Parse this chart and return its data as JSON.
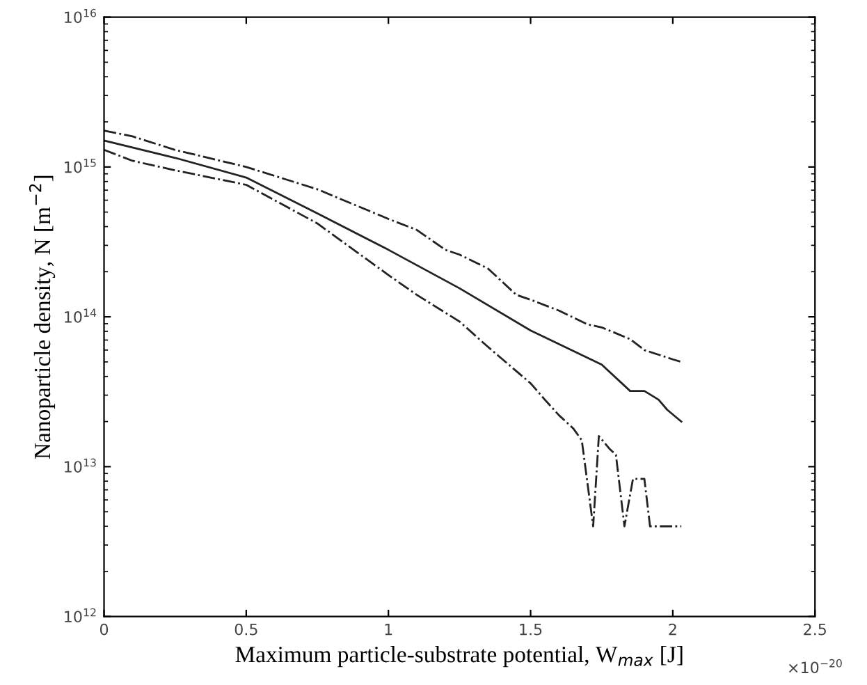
{
  "chart_data": {
    "type": "line",
    "xlabel": "Maximum particle-substrate potential, W$_{max}$ [J]",
    "ylabel": "Nanoparticle density, N [m$^{−2}$]",
    "annotations": [
      "×10$^{−20}$"
    ],
    "log": "y",
    "grid": false,
    "legend": false,
    "marker": "none",
    "xlim": [
      0,
      2.5
    ],
    "xticks": [
      0,
      0.5,
      1,
      1.5,
      2,
      2.5
    ],
    "ylim": [
      1000000000000.0,
      1e+16
    ],
    "yticks": [
      {
        "value": 1000000000000.0,
        "label": "10$^{12}$"
      },
      {
        "value": 10000000000000.0,
        "label": "10$^{13}$"
      },
      {
        "value": 100000000000000.0,
        "label": "10$^{14}$"
      },
      {
        "value": 1000000000000000.0,
        "label": "10$^{15}$"
      },
      {
        "value": 1e+16,
        "label": "10$^{16}$"
      }
    ],
    "series": [
      {
        "color": "#222222",
        "line_style": "solid",
        "x": [
          0,
          0.1,
          0.25,
          0.5,
          0.75,
          1,
          1.25,
          1.5,
          1.75,
          1.85,
          1.9,
          1.95,
          1.98,
          2.03
        ],
        "values": [
          1500000000000000.0,
          1350000000000000.0,
          1150000000000000.0,
          850000000000000.0,
          490000000000000.0,
          280000000000000.0,
          155000000000000.0,
          81000000000000.0,
          48000000000000.0,
          32000000000000.0,
          32000000000000.0,
          28000000000000.0,
          24000000000000.0,
          20000000000000.0
        ]
      },
      {
        "color": "#222222",
        "line_style": "dashdot",
        "x": [
          0,
          0.1,
          0.25,
          0.5,
          0.75,
          1,
          1.1,
          1.2,
          1.25,
          1.35,
          1.45,
          1.5,
          1.6,
          1.7,
          1.75,
          1.85,
          1.9,
          2,
          2.03
        ],
        "values": [
          1750000000000000.0,
          1600000000000000.0,
          1300000000000000.0,
          1000000000000000.0,
          710000000000000.0,
          450000000000000.0,
          380000000000000.0,
          280000000000000.0,
          260000000000000.0,
          210000000000000.0,
          140000000000000.0,
          130000000000000.0,
          110000000000000.0,
          89000000000000.0,
          85000000000000.0,
          71000000000000.0,
          60000000000000.0,
          52000000000000.0,
          50000000000000.0
        ]
      },
      {
        "color": "#222222",
        "line_style": "dashdot",
        "x": [
          0,
          0.1,
          0.25,
          0.5,
          0.75,
          1,
          1.1,
          1.25,
          1.35,
          1.5,
          1.55,
          1.6,
          1.65,
          1.68,
          1.72,
          1.74,
          1.78,
          1.8,
          1.83,
          1.86,
          1.9,
          1.92,
          2.03
        ],
        "values": [
          1300000000000000.0,
          1100000000000000.0,
          950000000000000.0,
          760000000000000.0,
          420000000000000.0,
          190000000000000.0,
          140000000000000.0,
          93000000000000.0,
          63000000000000.0,
          36000000000000.0,
          28000000000000.0,
          22000000000000.0,
          18000000000000.0,
          15000000000000.0,
          4000000000000.0,
          16000000000000.0,
          13000000000000.0,
          12000000000000.0,
          4000000000000.0,
          8300000000000.0,
          8300000000000.0,
          4000000000000.0,
          4000000000000.0
        ]
      }
    ]
  }
}
